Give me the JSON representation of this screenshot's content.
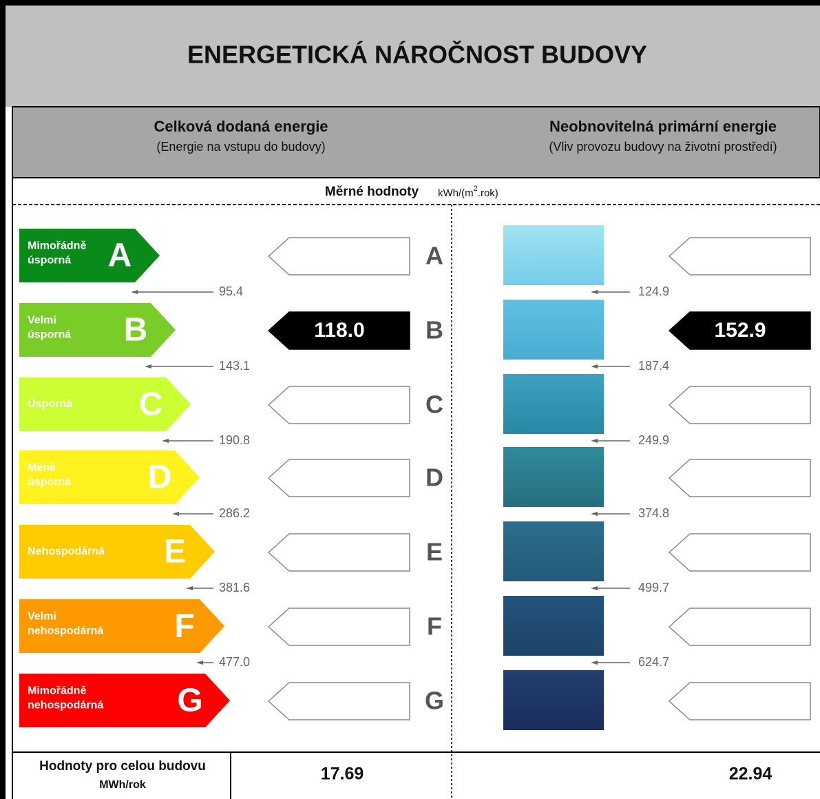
{
  "title": "ENERGETICKÁ NÁROČNOST BUDOVY",
  "columns": [
    {
      "title": "Celková dodaná energie",
      "subtitle": "(Energie na vstupu do budovy)"
    },
    {
      "title": "Neobnovitelná primární energie",
      "subtitle": "(Vliv provozu budovy na životní prostředí)"
    }
  ],
  "specific": {
    "label": "Měrné hodnoty",
    "unit_prefix": "kWh/(m",
    "unit_sup": "2",
    "unit_suffix": ".rok)"
  },
  "classes": [
    {
      "letter": "A",
      "name": [
        "Mimořádně",
        "úsporná"
      ]
    },
    {
      "letter": "B",
      "name": [
        "Velmi",
        "úsporná"
      ]
    },
    {
      "letter": "C",
      "name": [
        "Úsporná"
      ]
    },
    {
      "letter": "D",
      "name": [
        "Méně",
        "úsporná"
      ]
    },
    {
      "letter": "E",
      "name": [
        "Nehospodárná"
      ]
    },
    {
      "letter": "F",
      "name": [
        "Velmi",
        "nehospodárná"
      ]
    },
    {
      "letter": "G",
      "name": [
        "Mimořádně",
        "nehospodárná"
      ]
    }
  ],
  "left_thresholds": [
    "95.4",
    "143.1",
    "190.8",
    "286.2",
    "381.6",
    "477.0"
  ],
  "right_thresholds": [
    "124.9",
    "187.4",
    "249.9",
    "374.8",
    "499.7",
    "624.7"
  ],
  "left_rating": {
    "class": "B",
    "value": "118.0"
  },
  "right_rating": {
    "class": "B",
    "value": "152.9"
  },
  "totals": {
    "label": "Hodnoty pro celou budovu",
    "unit": "MWh/rok",
    "left": "17.69",
    "right": "22.94"
  }
}
